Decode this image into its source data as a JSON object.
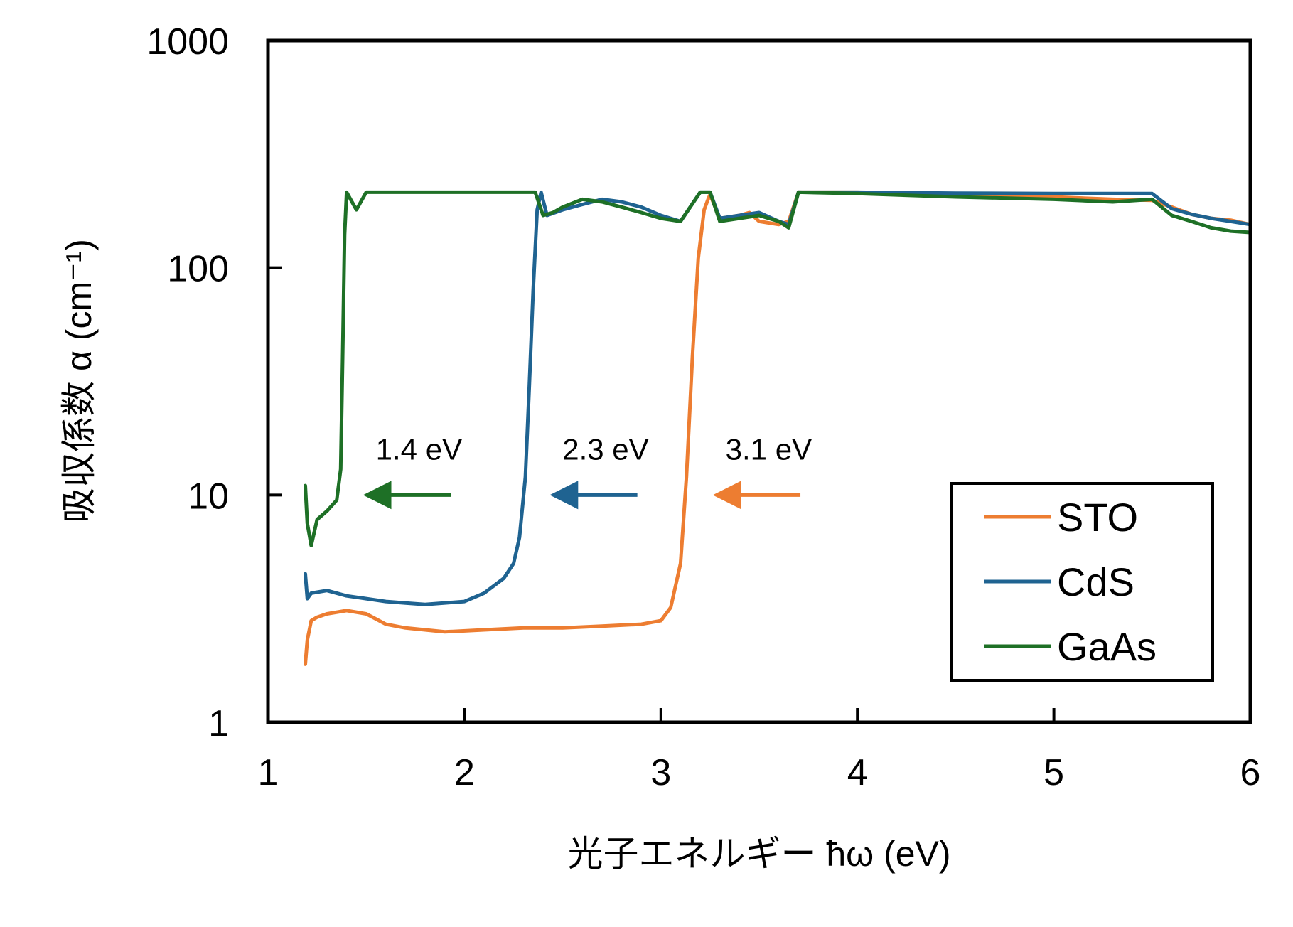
{
  "chart_data": {
    "type": "line",
    "x_scale": "linear",
    "y_scale": "log",
    "xlim": [
      1,
      6
    ],
    "ylim": [
      1,
      1000
    ],
    "xticks": [
      "1",
      "2",
      "3",
      "4",
      "5",
      "6"
    ],
    "yticks": [
      "1",
      "10",
      "100",
      "1000"
    ],
    "xlabel": "光子エネルギー ħω (eV)",
    "ylabel": "吸収係数 α (cm⁻¹)",
    "grid": false,
    "legend_position": "bottom-right",
    "series": [
      {
        "name": "STO",
        "color": "#ED7D31",
        "x": [
          1.19,
          1.2,
          1.22,
          1.25,
          1.3,
          1.4,
          1.5,
          1.6,
          1.7,
          1.9,
          2.1,
          2.3,
          2.5,
          2.7,
          2.9,
          3.0,
          3.05,
          3.1,
          3.13,
          3.16,
          3.19,
          3.22,
          3.24,
          3.25,
          3.3,
          3.4,
          3.45,
          3.5,
          3.6,
          3.65,
          3.7,
          4.0,
          4.5,
          5.0,
          5.3,
          5.5,
          5.6,
          5.7,
          5.8,
          5.9,
          6.0
        ],
        "y": [
          1.8,
          2.3,
          2.8,
          2.9,
          3.0,
          3.1,
          3.0,
          2.7,
          2.6,
          2.5,
          2.55,
          2.6,
          2.6,
          2.65,
          2.7,
          2.8,
          3.2,
          5.0,
          12.0,
          40.0,
          110.0,
          180.0,
          200.0,
          210.0,
          165.0,
          170.0,
          175.0,
          160.0,
          155.0,
          160.0,
          215.0,
          215.0,
          210.0,
          205.0,
          200.0,
          198.0,
          185.0,
          172.0,
          165.0,
          162.0,
          155.0
        ]
      },
      {
        "name": "CdS",
        "color": "#1F6391",
        "x": [
          1.19,
          1.2,
          1.22,
          1.3,
          1.4,
          1.5,
          1.6,
          1.7,
          1.8,
          2.0,
          2.1,
          2.2,
          2.25,
          2.28,
          2.31,
          2.33,
          2.35,
          2.37,
          2.39,
          2.42,
          2.5,
          2.6,
          2.7,
          2.8,
          2.9,
          3.0,
          3.1,
          3.2,
          3.25,
          3.3,
          3.4,
          3.5,
          3.6,
          3.65,
          3.7,
          4.0,
          4.5,
          5.0,
          5.3,
          5.5,
          5.6,
          5.7,
          5.8,
          5.9,
          6.0
        ],
        "y": [
          4.5,
          3.5,
          3.7,
          3.8,
          3.6,
          3.5,
          3.4,
          3.35,
          3.3,
          3.4,
          3.7,
          4.3,
          5.0,
          6.5,
          12.0,
          30.0,
          80.0,
          180.0,
          215.0,
          170.0,
          180.0,
          190.0,
          200.0,
          195.0,
          185.0,
          170.0,
          160.0,
          215.0,
          215.0,
          165.0,
          170.0,
          175.0,
          160.0,
          155.0,
          215.0,
          215.0,
          213.0,
          212.0,
          212.0,
          212.0,
          182.0,
          172.0,
          165.0,
          160.0,
          155.0
        ]
      },
      {
        "name": "GaAs",
        "color": "#1E7026",
        "x": [
          1.19,
          1.2,
          1.22,
          1.25,
          1.3,
          1.35,
          1.37,
          1.38,
          1.39,
          1.4,
          1.45,
          1.5,
          1.6,
          1.8,
          2.0,
          2.2,
          2.36,
          2.4,
          2.45,
          2.5,
          2.6,
          2.7,
          2.8,
          2.9,
          3.0,
          3.1,
          3.2,
          3.25,
          3.3,
          3.4,
          3.5,
          3.6,
          3.65,
          3.7,
          4.0,
          4.5,
          5.0,
          5.3,
          5.5,
          5.6,
          5.7,
          5.8,
          5.9,
          6.0
        ],
        "y": [
          11.0,
          7.5,
          6.0,
          7.8,
          8.5,
          9.5,
          13.0,
          40.0,
          140.0,
          215.0,
          180.0,
          215.0,
          215.0,
          215.0,
          215.0,
          215.0,
          215.0,
          170.0,
          175.0,
          185.0,
          200.0,
          195.0,
          185.0,
          175.0,
          165.0,
          160.0,
          215.0,
          215.0,
          160.0,
          165.0,
          170.0,
          160.0,
          150.0,
          215.0,
          212.0,
          205.0,
          200.0,
          195.0,
          200.0,
          170.0,
          160.0,
          150.0,
          145.0,
          143.0
        ]
      }
    ],
    "annotations": [
      {
        "text": "1.4 eV",
        "arrow_from_x": 1.93,
        "arrow_to_x": 1.52,
        "y": 10,
        "color": "#1E7026"
      },
      {
        "text": "2.3 eV",
        "arrow_from_x": 2.88,
        "arrow_to_x": 2.47,
        "y": 10,
        "color": "#1F6391"
      },
      {
        "text": "3.1 eV",
        "arrow_from_x": 3.71,
        "arrow_to_x": 3.3,
        "y": 10,
        "color": "#ED7D31"
      }
    ]
  }
}
